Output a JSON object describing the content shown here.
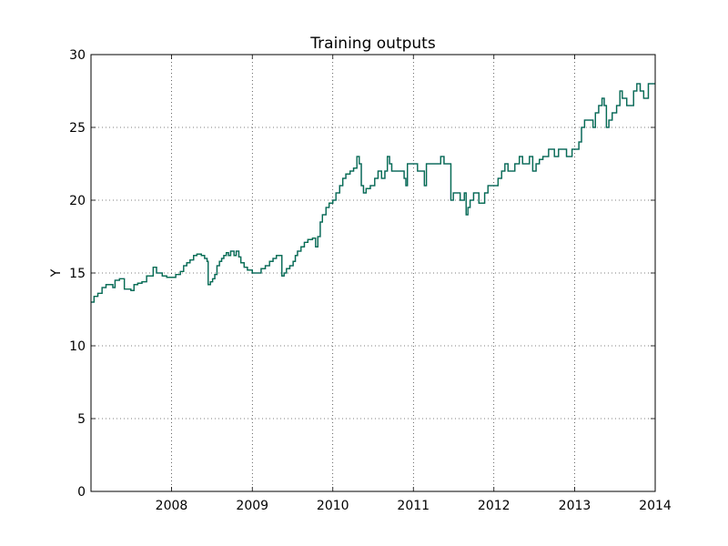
{
  "chart_data": {
    "type": "line",
    "title": "Training outputs",
    "xlabel": "",
    "ylabel": "Y",
    "xlim": [
      "2007-01-01",
      "2014-01-01"
    ],
    "ylim": [
      0,
      30
    ],
    "grid": true,
    "x_ticks": [
      "2008-01-01",
      "2009-01-01",
      "2010-01-01",
      "2011-01-01",
      "2012-01-01",
      "2013-01-01",
      "2014-01-01"
    ],
    "x_tick_labels": [
      "2008",
      "2009",
      "2010",
      "2011",
      "2012",
      "2013",
      "2014"
    ],
    "y_ticks": [
      0,
      5,
      10,
      15,
      20,
      25,
      30
    ],
    "y_tick_labels": [
      "0",
      "5",
      "10",
      "15",
      "20",
      "25",
      "30"
    ],
    "line_colors": [
      "#1a1aa0",
      "#008040"
    ],
    "series": [
      {
        "step": true,
        "values": [
          [
            "2007-01-01",
            13.0
          ],
          [
            "2007-01-15",
            13.4
          ],
          [
            "2007-02-01",
            13.6
          ],
          [
            "2007-02-20",
            14.0
          ],
          [
            "2007-03-10",
            14.2
          ],
          [
            "2007-04-10",
            14.0
          ],
          [
            "2007-04-20",
            14.5
          ],
          [
            "2007-05-10",
            14.6
          ],
          [
            "2007-06-01",
            13.9
          ],
          [
            "2007-07-01",
            13.8
          ],
          [
            "2007-07-15",
            14.2
          ],
          [
            "2007-08-01",
            14.3
          ],
          [
            "2007-08-20",
            14.4
          ],
          [
            "2007-09-10",
            14.8
          ],
          [
            "2007-10-10",
            15.4
          ],
          [
            "2007-10-25",
            15.0
          ],
          [
            "2007-11-20",
            14.8
          ],
          [
            "2007-12-10",
            14.7
          ],
          [
            "2008-01-20",
            14.9
          ],
          [
            "2008-02-10",
            15.1
          ],
          [
            "2008-02-25",
            15.5
          ],
          [
            "2008-03-10",
            15.7
          ],
          [
            "2008-03-25",
            15.9
          ],
          [
            "2008-04-10",
            16.2
          ],
          [
            "2008-04-25",
            16.3
          ],
          [
            "2008-05-15",
            16.2
          ],
          [
            "2008-05-30",
            16.0
          ],
          [
            "2008-06-10",
            15.8
          ],
          [
            "2008-06-15",
            14.2
          ],
          [
            "2008-06-25",
            14.4
          ],
          [
            "2008-07-05",
            14.6
          ],
          [
            "2008-07-15",
            14.9
          ],
          [
            "2008-07-25",
            15.5
          ],
          [
            "2008-08-05",
            15.8
          ],
          [
            "2008-08-15",
            16.0
          ],
          [
            "2008-08-25",
            16.2
          ],
          [
            "2008-09-05",
            16.4
          ],
          [
            "2008-09-15",
            16.2
          ],
          [
            "2008-09-25",
            16.5
          ],
          [
            "2008-10-10",
            16.2
          ],
          [
            "2008-10-20",
            16.5
          ],
          [
            "2008-11-01",
            16.1
          ],
          [
            "2008-11-10",
            15.7
          ],
          [
            "2008-11-25",
            15.4
          ],
          [
            "2008-12-10",
            15.2
          ],
          [
            "2009-01-01",
            15.0
          ],
          [
            "2009-01-20",
            15.0
          ],
          [
            "2009-02-10",
            15.3
          ],
          [
            "2009-03-01",
            15.5
          ],
          [
            "2009-03-20",
            15.8
          ],
          [
            "2009-04-05",
            16.0
          ],
          [
            "2009-04-20",
            16.2
          ],
          [
            "2009-05-05",
            16.2
          ],
          [
            "2009-05-15",
            14.8
          ],
          [
            "2009-05-25",
            15.0
          ],
          [
            "2009-06-05",
            15.3
          ],
          [
            "2009-06-20",
            15.5
          ],
          [
            "2009-07-05",
            15.8
          ],
          [
            "2009-07-15",
            16.2
          ],
          [
            "2009-07-25",
            16.5
          ],
          [
            "2009-08-10",
            16.8
          ],
          [
            "2009-08-25",
            17.1
          ],
          [
            "2009-09-10",
            17.3
          ],
          [
            "2009-10-01",
            17.4
          ],
          [
            "2009-10-15",
            16.8
          ],
          [
            "2009-10-25",
            17.5
          ],
          [
            "2009-11-05",
            18.5
          ],
          [
            "2009-11-15",
            19.0
          ],
          [
            "2009-12-01",
            19.5
          ],
          [
            "2009-12-15",
            19.8
          ],
          [
            "2010-01-01",
            20.0
          ],
          [
            "2010-01-15",
            20.5
          ],
          [
            "2010-02-01",
            21.0
          ],
          [
            "2010-02-15",
            21.5
          ],
          [
            "2010-03-01",
            21.8
          ],
          [
            "2010-03-20",
            22.0
          ],
          [
            "2010-04-05",
            22.2
          ],
          [
            "2010-04-20",
            23.0
          ],
          [
            "2010-05-01",
            22.5
          ],
          [
            "2010-05-10",
            21.0
          ],
          [
            "2010-05-20",
            20.5
          ],
          [
            "2010-06-01",
            20.8
          ],
          [
            "2010-06-20",
            21.0
          ],
          [
            "2010-07-10",
            21.5
          ],
          [
            "2010-07-25",
            22.0
          ],
          [
            "2010-08-10",
            21.5
          ],
          [
            "2010-08-25",
            22.0
          ],
          [
            "2010-09-05",
            23.0
          ],
          [
            "2010-09-15",
            22.5
          ],
          [
            "2010-09-25",
            22.0
          ],
          [
            "2010-11-01",
            22.0
          ],
          [
            "2010-11-20",
            21.5
          ],
          [
            "2010-11-28",
            21.0
          ],
          [
            "2010-12-05",
            22.5
          ],
          [
            "2011-01-01",
            22.5
          ],
          [
            "2011-01-20",
            22.0
          ],
          [
            "2011-02-15",
            22.0
          ],
          [
            "2011-02-20",
            21.0
          ],
          [
            "2011-03-01",
            22.5
          ],
          [
            "2011-05-05",
            23.0
          ],
          [
            "2011-05-20",
            22.5
          ],
          [
            "2011-06-20",
            20.0
          ],
          [
            "2011-07-01",
            20.5
          ],
          [
            "2011-07-15",
            20.5
          ],
          [
            "2011-08-01",
            20.0
          ],
          [
            "2011-08-20",
            20.5
          ],
          [
            "2011-08-28",
            19.0
          ],
          [
            "2011-09-05",
            19.5
          ],
          [
            "2011-09-15",
            20.0
          ],
          [
            "2011-10-01",
            20.5
          ],
          [
            "2011-10-25",
            19.8
          ],
          [
            "2011-11-20",
            20.5
          ],
          [
            "2011-12-05",
            21.0
          ],
          [
            "2012-01-01",
            21.0
          ],
          [
            "2012-01-20",
            21.5
          ],
          [
            "2012-02-05",
            22.0
          ],
          [
            "2012-02-20",
            22.5
          ],
          [
            "2012-03-05",
            22.0
          ],
          [
            "2012-04-05",
            22.5
          ],
          [
            "2012-04-25",
            23.0
          ],
          [
            "2012-05-10",
            22.5
          ],
          [
            "2012-06-10",
            23.0
          ],
          [
            "2012-06-25",
            22.0
          ],
          [
            "2012-07-10",
            22.5
          ],
          [
            "2012-07-25",
            22.8
          ],
          [
            "2012-08-10",
            23.0
          ],
          [
            "2012-09-05",
            23.5
          ],
          [
            "2012-10-01",
            23.0
          ],
          [
            "2012-10-20",
            23.5
          ],
          [
            "2012-11-25",
            23.0
          ],
          [
            "2012-12-20",
            23.5
          ],
          [
            "2013-01-20",
            24.0
          ],
          [
            "2013-02-01",
            25.0
          ],
          [
            "2013-02-15",
            25.5
          ],
          [
            "2013-03-25",
            25.0
          ],
          [
            "2013-04-05",
            26.0
          ],
          [
            "2013-04-20",
            26.5
          ],
          [
            "2013-05-05",
            27.0
          ],
          [
            "2013-05-15",
            26.5
          ],
          [
            "2013-05-25",
            25.0
          ],
          [
            "2013-06-05",
            25.5
          ],
          [
            "2013-06-20",
            26.0
          ],
          [
            "2013-07-10",
            26.5
          ],
          [
            "2013-07-25",
            27.5
          ],
          [
            "2013-08-05",
            27.0
          ],
          [
            "2013-08-25",
            26.5
          ],
          [
            "2013-09-25",
            27.5
          ],
          [
            "2013-10-10",
            28.0
          ],
          [
            "2013-10-25",
            27.5
          ],
          [
            "2013-11-10",
            27.0
          ],
          [
            "2013-12-01",
            28.0
          ],
          [
            "2014-01-01",
            28.0
          ]
        ]
      }
    ]
  }
}
